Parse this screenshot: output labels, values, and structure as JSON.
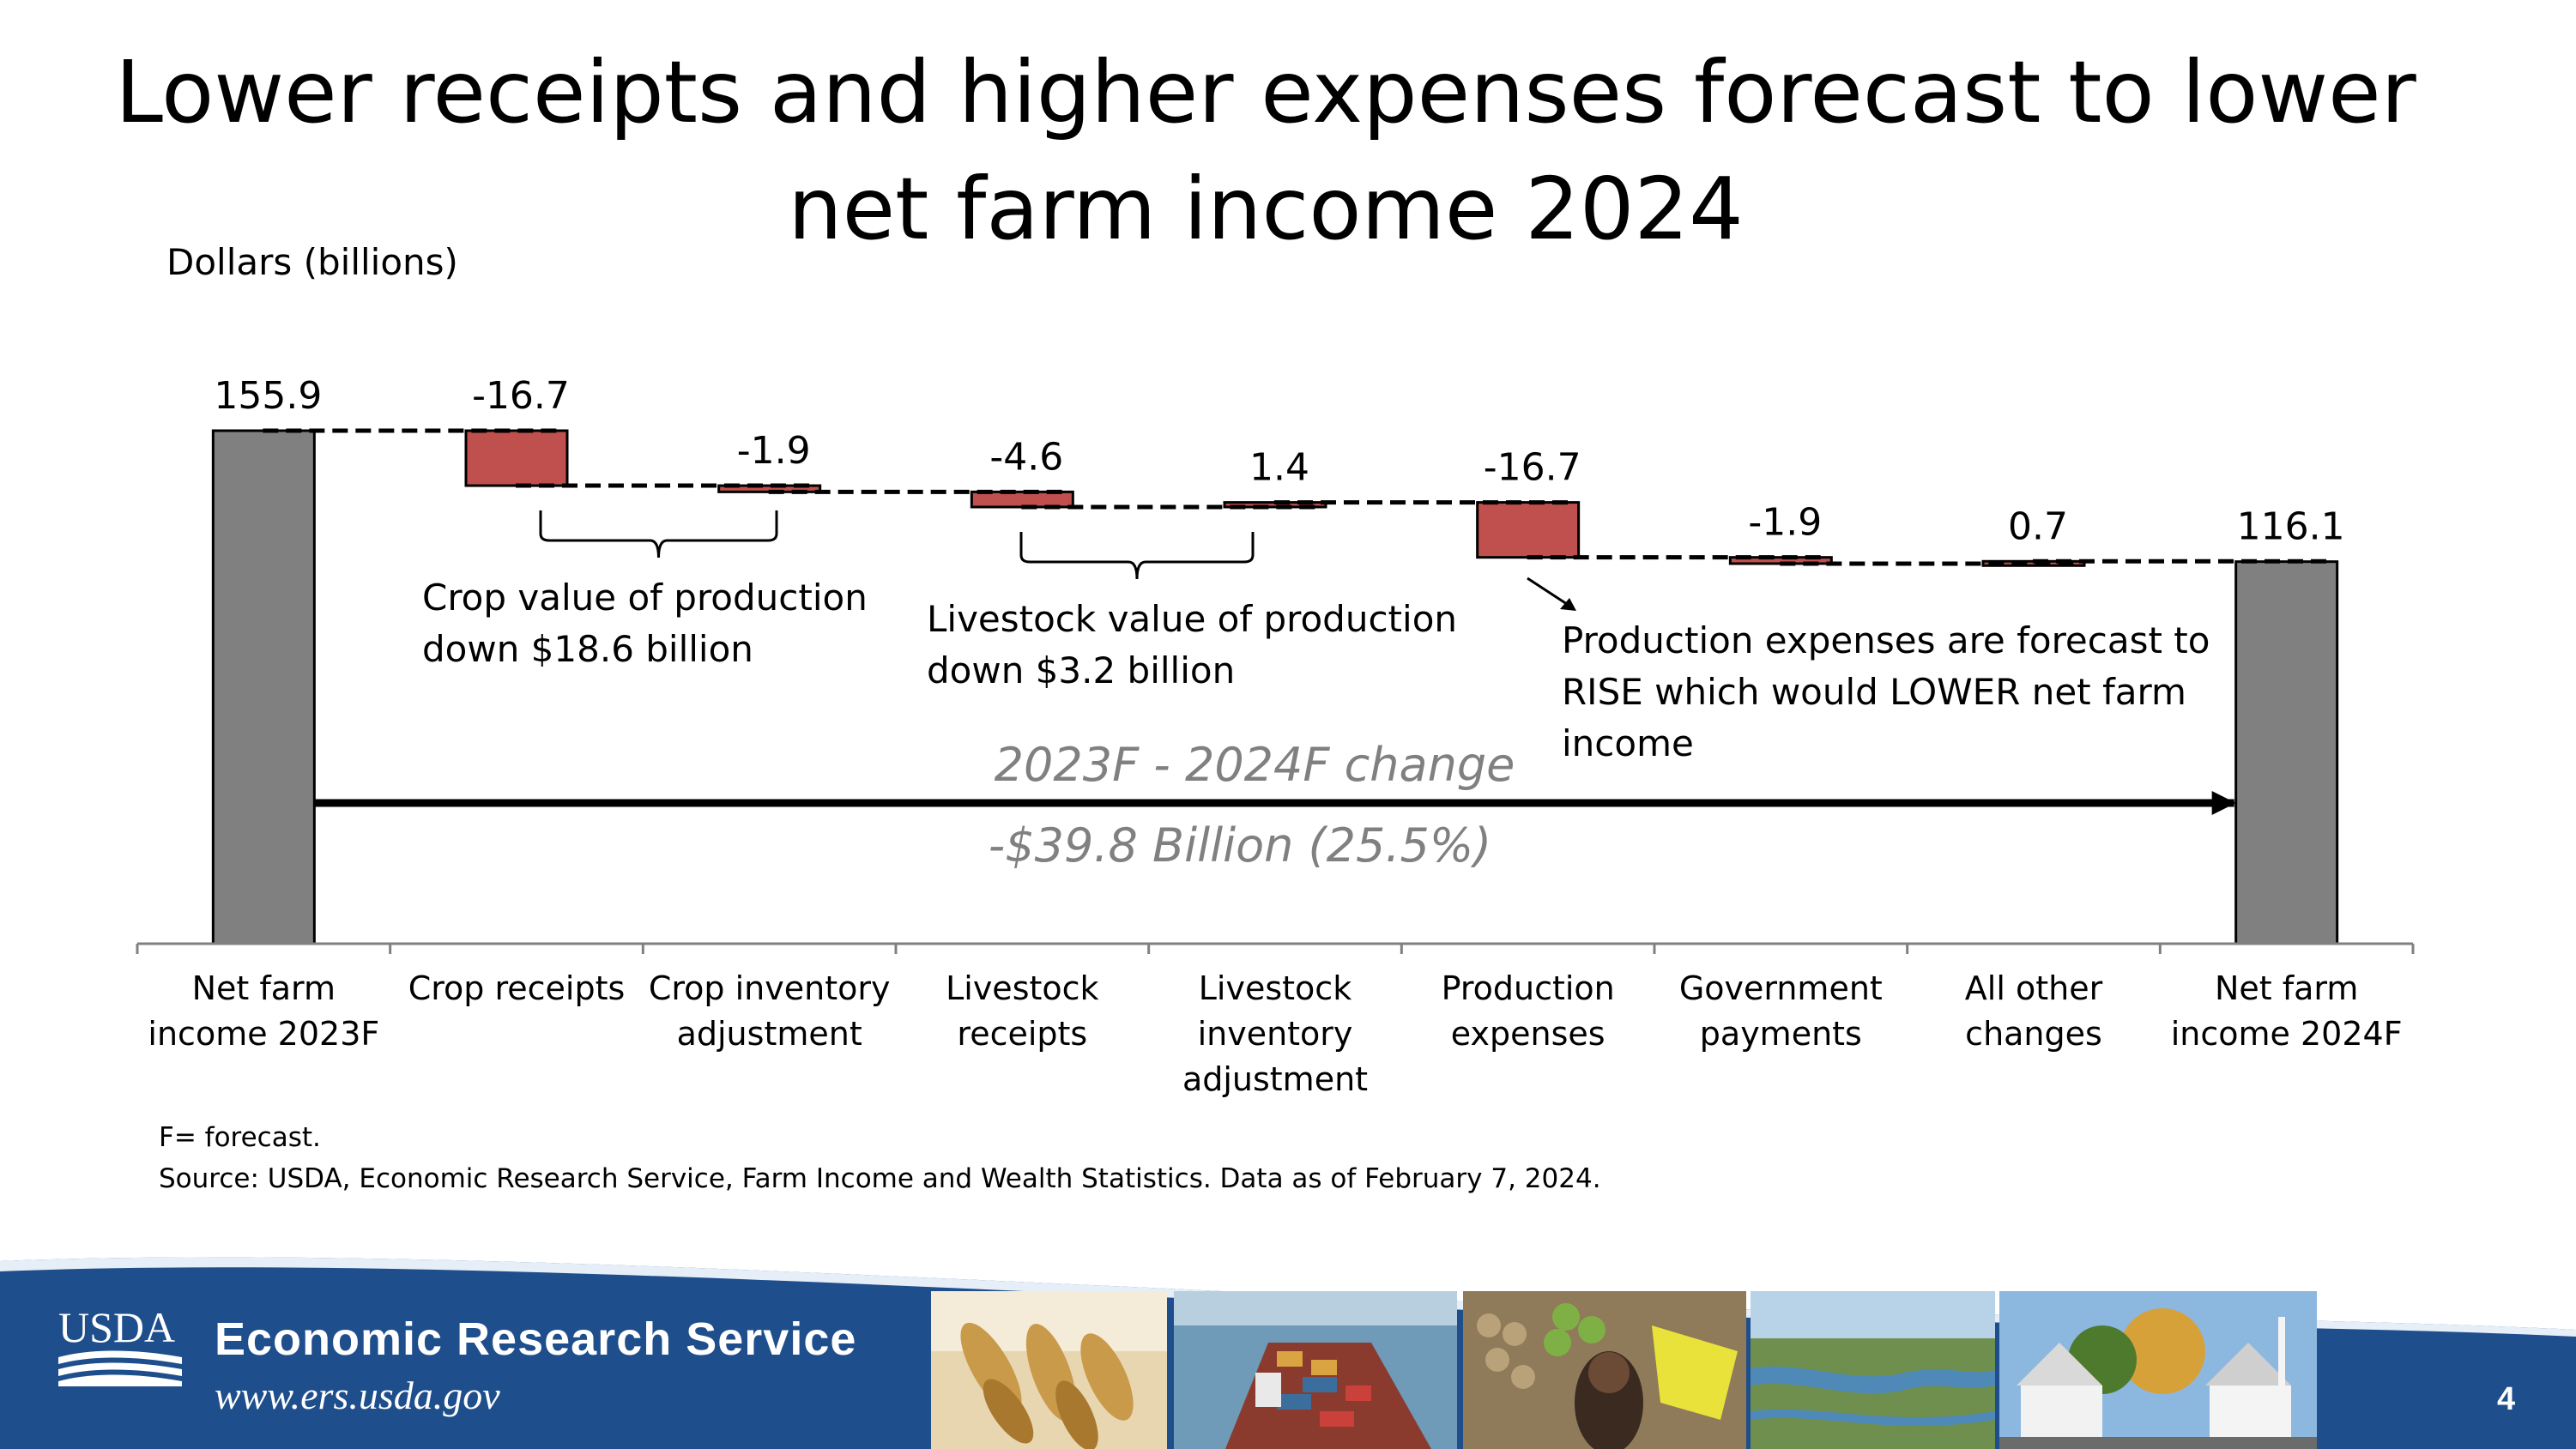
{
  "title_lines": [
    "Lower receipts and higher expenses forecast to lower",
    "net farm income 2024"
  ],
  "units_label": "Dollars (billions)",
  "chart_data": {
    "type": "waterfall",
    "title": "Lower receipts and higher expenses forecast to lower net farm income 2024",
    "ylabel": "Dollars (billions)",
    "categories": [
      [
        "Net farm",
        "income 2023F"
      ],
      [
        "Crop receipts"
      ],
      [
        "Crop inventory",
        "adjustment"
      ],
      [
        "Livestock",
        "receipts"
      ],
      [
        "Livestock",
        "inventory",
        "adjustment"
      ],
      [
        "Production",
        "expenses"
      ],
      [
        "Government",
        "payments"
      ],
      [
        "All other",
        "changes"
      ],
      [
        "Net farm",
        "income 2024F"
      ]
    ],
    "steps": [
      {
        "kind": "total",
        "value": 155.9,
        "label": "155.9"
      },
      {
        "kind": "change",
        "value": -16.7,
        "label": "-16.7"
      },
      {
        "kind": "change",
        "value": -1.9,
        "label": "-1.9"
      },
      {
        "kind": "change",
        "value": -4.6,
        "label": "-4.6"
      },
      {
        "kind": "change",
        "value": 1.4,
        "label": "1.4"
      },
      {
        "kind": "change",
        "value": -16.7,
        "label": "-16.7"
      },
      {
        "kind": "change",
        "value": -1.9,
        "label": "-1.9"
      },
      {
        "kind": "change",
        "value": 0.7,
        "label": "0.7"
      },
      {
        "kind": "total",
        "value": 116.1,
        "label": "116.1"
      }
    ],
    "colors": {
      "total": "#808080",
      "change": "#c0504d",
      "arrow": "#000000",
      "change_text": "#808080"
    },
    "annotations": {
      "crop_group": [
        "Crop value of production",
        "down $18.6 billion"
      ],
      "livestock_group": [
        "Livestock value of production",
        "down $3.2 billion"
      ],
      "expenses_note": [
        "Production expenses are forecast to",
        "RISE which would LOWER net farm",
        "income"
      ],
      "change_line1": "2023F - 2024F change",
      "change_line2": "-$39.8 Billion (25.5%)"
    }
  },
  "footnotes": [
    "F= forecast.",
    "Source: USDA, Economic Research Service, Farm Income and Wealth Statistics. Data as of February 7, 2024."
  ],
  "footer": {
    "logo_text": "USDA",
    "org_name": "Economic Research Service",
    "url": "www.ers.usda.gov",
    "page_number": "4",
    "colors": {
      "banner": "#1f4e8c",
      "banner_light": "#2e6db4"
    },
    "photos": [
      "wheat",
      "cargo-ship",
      "produce-shopper",
      "wetland",
      "town-houses"
    ]
  }
}
